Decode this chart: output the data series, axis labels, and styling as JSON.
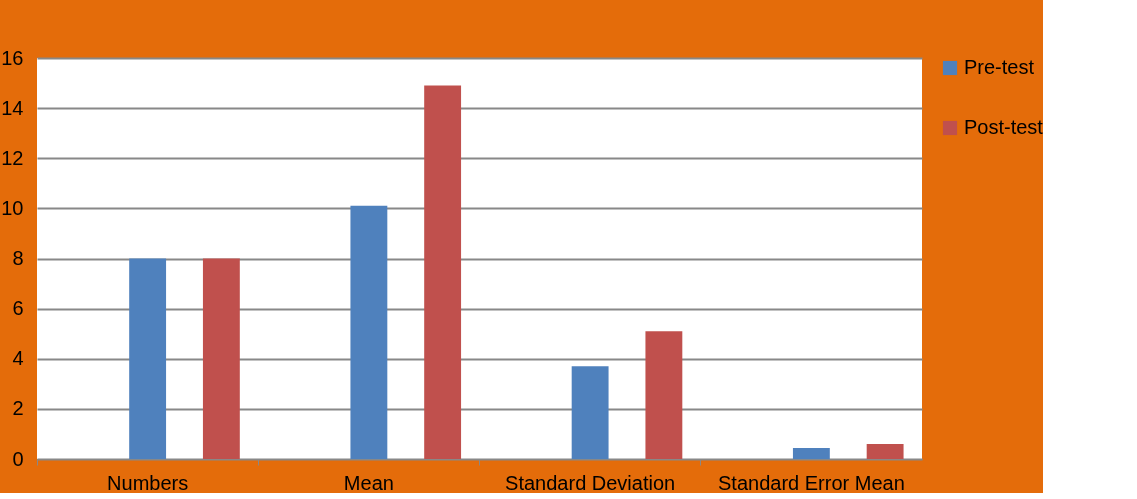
{
  "chart_data": {
    "type": "bar",
    "categories": [
      "Numbers",
      "Mean",
      "Standard Deviation",
      "Standard Error Mean"
    ],
    "series": [
      {
        "name": "Pre-test",
        "color": "#4f81bd",
        "values": [
          8,
          10.1,
          3.7,
          0.44
        ]
      },
      {
        "name": "Post-test",
        "color": "#c0504d",
        "values": [
          8,
          14.9,
          5.1,
          0.6
        ]
      }
    ],
    "ylim": [
      0,
      16
    ],
    "yticks": [
      0,
      2,
      4,
      6,
      8,
      10,
      12,
      14,
      16
    ],
    "grid": "y",
    "legend": "right"
  }
}
